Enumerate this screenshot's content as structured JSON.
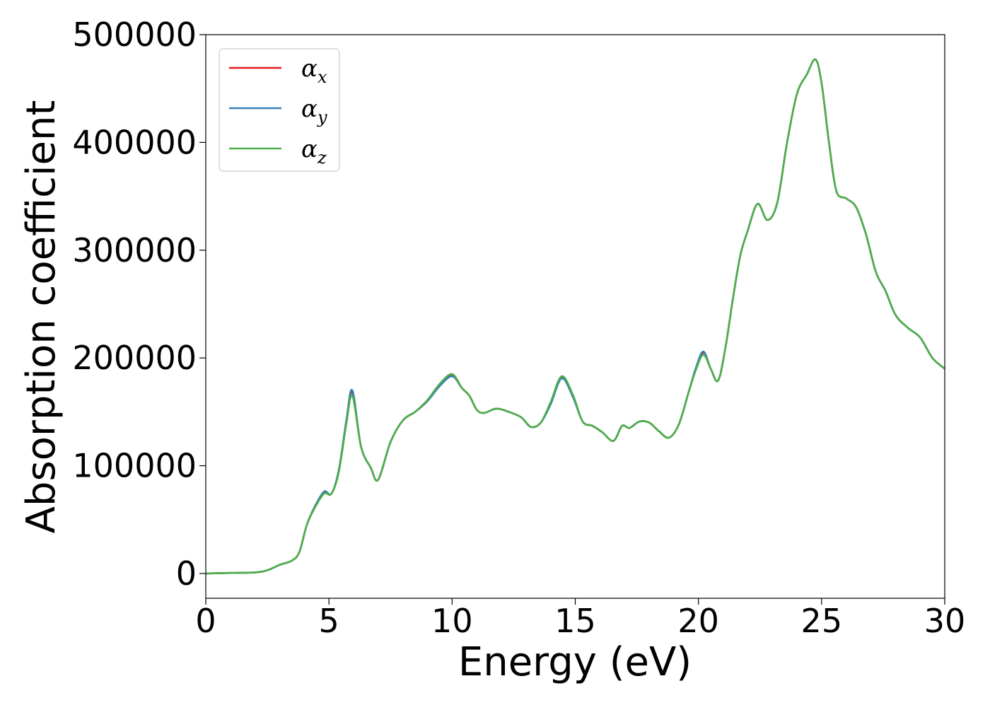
{
  "chart_data": {
    "type": "line",
    "xlabel": "Energy (eV)",
    "ylabel": "Absorption coefficient",
    "xlim": [
      0,
      30
    ],
    "ylim": [
      -23000,
      500000
    ],
    "xticks": [
      0,
      5,
      10,
      15,
      20,
      25,
      30
    ],
    "yticks": [
      0,
      100000,
      200000,
      300000,
      400000,
      500000
    ],
    "xtick_labels": [
      "0",
      "5",
      "10",
      "15",
      "20",
      "25",
      "30"
    ],
    "ytick_labels": [
      "0",
      "100000",
      "200000",
      "300000",
      "400000",
      "500000"
    ],
    "grid": false,
    "legend_position": "top-left",
    "x": [
      0,
      1,
      2,
      2.5,
      3,
      3.5,
      3.8,
      4.1,
      4.4,
      4.8,
      5.1,
      5.4,
      5.7,
      5.95,
      6.3,
      6.7,
      7.0,
      7.5,
      8.0,
      8.5,
      9.0,
      9.5,
      10.0,
      10.4,
      10.7,
      11.0,
      11.3,
      11.8,
      12.3,
      12.8,
      13.2,
      13.6,
      14.0,
      14.45,
      14.9,
      15.3,
      15.7,
      16.1,
      16.55,
      16.9,
      17.2,
      17.6,
      18.0,
      18.4,
      18.8,
      19.2,
      19.6,
      19.9,
      20.2,
      20.5,
      20.8,
      21.1,
      21.4,
      21.7,
      22.0,
      22.4,
      22.8,
      23.2,
      23.6,
      24.0,
      24.4,
      24.75,
      25.0,
      25.3,
      25.6,
      26.0,
      26.4,
      26.8,
      27.2,
      27.6,
      28.0,
      28.5,
      29.0,
      29.5,
      30.0
    ],
    "series": [
      {
        "name": "α_x",
        "color": "#e41a1c",
        "values": [
          0,
          500,
          1000,
          3000,
          8000,
          12000,
          20000,
          45000,
          60000,
          75000,
          74000,
          95000,
          140000,
          168000,
          118000,
          98000,
          87000,
          122000,
          142000,
          150000,
          160000,
          175000,
          184000,
          172000,
          165000,
          152000,
          149000,
          153000,
          150000,
          145000,
          136000,
          140000,
          158000,
          182000,
          165000,
          141000,
          137000,
          131000,
          123000,
          137000,
          135000,
          141000,
          140000,
          132000,
          126000,
          138000,
          168000,
          190000,
          205000,
          190000,
          179000,
          210000,
          255000,
          295000,
          318000,
          343000,
          328000,
          344000,
          400000,
          445000,
          463000,
          477000,
          455000,
          400000,
          355000,
          348000,
          340000,
          315000,
          280000,
          262000,
          240000,
          228000,
          219000,
          200000,
          190000
        ]
      },
      {
        "name": "α_y",
        "color": "#377eb8",
        "values": [
          0,
          500,
          1000,
          3000,
          8000,
          12000,
          20000,
          45000,
          61000,
          76000,
          74000,
          96000,
          141000,
          170000,
          118000,
          98000,
          87000,
          122000,
          142000,
          150000,
          160000,
          174000,
          183000,
          172000,
          165000,
          152000,
          149000,
          153000,
          150000,
          145000,
          136000,
          140000,
          157000,
          181000,
          164000,
          141000,
          137000,
          131000,
          123000,
          137000,
          135000,
          141000,
          140000,
          132000,
          126000,
          138000,
          168000,
          191000,
          206000,
          190000,
          179000,
          210000,
          255000,
          295000,
          318000,
          343000,
          328000,
          344000,
          400000,
          445000,
          463000,
          477000,
          455000,
          400000,
          355000,
          348000,
          340000,
          315000,
          280000,
          262000,
          240000,
          228000,
          219000,
          200000,
          190000
        ]
      },
      {
        "name": "α_z",
        "color": "#4daf4a",
        "values": [
          0,
          500,
          1000,
          3000,
          8000,
          12000,
          20000,
          45000,
          60000,
          74000,
          74000,
          94000,
          138000,
          165000,
          118000,
          98000,
          87000,
          122000,
          142000,
          150000,
          161000,
          176000,
          185000,
          172000,
          165000,
          152000,
          149000,
          153000,
          150000,
          145000,
          136000,
          140000,
          159000,
          183000,
          166000,
          141000,
          137000,
          131000,
          123000,
          137000,
          135000,
          141000,
          140000,
          132000,
          126000,
          138000,
          168000,
          189000,
          203000,
          190000,
          179000,
          210000,
          255000,
          295000,
          318000,
          343000,
          328000,
          344000,
          400000,
          445000,
          463000,
          477000,
          455000,
          400000,
          355000,
          348000,
          340000,
          315000,
          280000,
          262000,
          240000,
          228000,
          219000,
          200000,
          190000
        ]
      }
    ],
    "legend": [
      {
        "symbol": "α",
        "sub": "x"
      },
      {
        "symbol": "α",
        "sub": "y"
      },
      {
        "symbol": "α",
        "sub": "z"
      }
    ]
  }
}
